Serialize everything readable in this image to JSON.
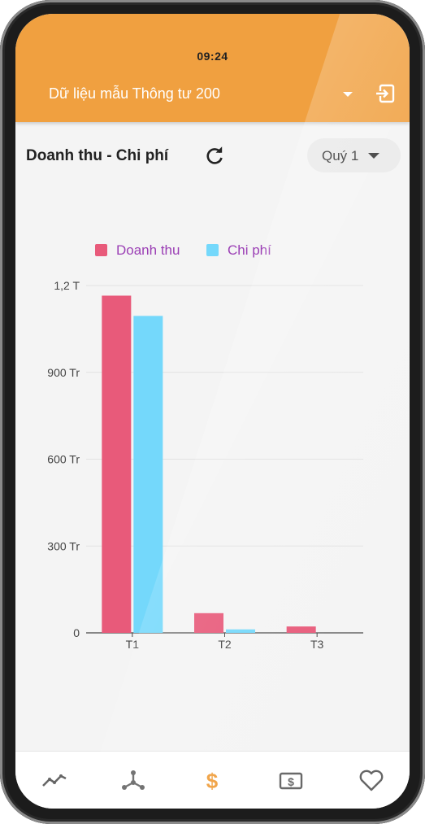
{
  "status_bar": {
    "time": "09:24"
  },
  "app_bar": {
    "title": "Dữ liệu mẫu Thông tư 200",
    "dropdown_icon": "caret-down-icon",
    "exit_icon": "exit-icon",
    "background": "#f0a040"
  },
  "header": {
    "title": "Doanh thu - Chi phí",
    "refresh_icon": "refresh-icon",
    "quarter_select": {
      "selected": "Quý 1"
    }
  },
  "chart_data": {
    "type": "bar",
    "categories": [
      "T1",
      "T2",
      "T3"
    ],
    "series": [
      {
        "name": "Doanh thu",
        "color": "#e85a7a",
        "values": [
          1165,
          68,
          22
        ]
      },
      {
        "name": "Chi phí",
        "color": "#74d8fb",
        "values": [
          1095,
          12,
          0
        ]
      }
    ],
    "ylim": [
      0,
      1200
    ],
    "yticks": [
      0,
      300,
      600,
      900,
      1200
    ],
    "ytick_labels": [
      "0",
      "300 Tr",
      "600 Tr",
      "900 Tr",
      "1,2 T"
    ],
    "legend_position": "top",
    "grid": true
  },
  "bottom_nav": {
    "items": [
      {
        "icon": "trend-line-icon",
        "active": false
      },
      {
        "icon": "hierarchy-icon",
        "active": false
      },
      {
        "icon": "dollar-icon",
        "active": true
      },
      {
        "icon": "money-bill-icon",
        "active": false
      },
      {
        "icon": "heart-icon",
        "active": false
      }
    ],
    "active_color": "#f0a040",
    "inactive_color": "#666666"
  }
}
